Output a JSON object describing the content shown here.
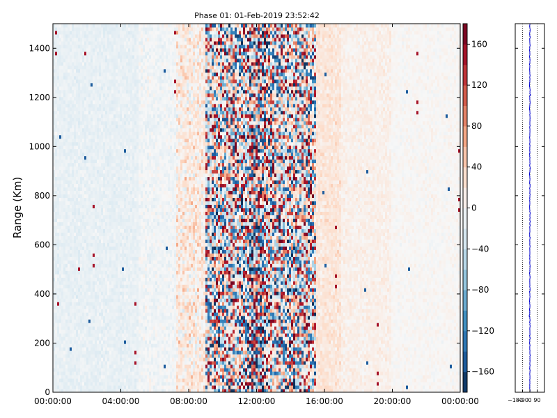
{
  "chart_data": [
    {
      "type": "heatmap",
      "title": "Phase 01: 01-Feb-2019 23:52:42",
      "ylabel": "Range (Km)",
      "xlabel": "",
      "xlim": [
        "00:00:00",
        "24:00:00"
      ],
      "ylim": [
        0,
        1500
      ],
      "x_ticks": [
        "00:00:00",
        "04:00:00",
        "08:00:00",
        "12:00:00",
        "16:00:00",
        "20:00:00",
        "00:00:00"
      ],
      "x_tick_hours": [
        0,
        4,
        8,
        12,
        16,
        20,
        24
      ],
      "y_ticks": [
        0,
        200,
        400,
        600,
        800,
        1000,
        1200,
        1400
      ],
      "colormap": "RdBu_r",
      "colorbar": {
        "range": [
          -180,
          180
        ],
        "ticks": [
          -160,
          -120,
          -80,
          -40,
          0,
          40,
          80,
          120,
          160
        ],
        "colors": [
          "#0b2a50",
          "#2166ac",
          "#4393c3",
          "#92c5de",
          "#d1e5f0",
          "#f7f7f7",
          "#fddbc7",
          "#f4a582",
          "#d6604d",
          "#b2182b",
          "#67001f"
        ]
      },
      "grid": false,
      "description_noise": "noisy phase values; strongest variability between ~08:00 and ~16:00, near zero elsewhere"
    },
    {
      "type": "line",
      "xlim": [
        -180,
        180
      ],
      "x_ticks": [
        -180,
        -90,
        0,
        90
      ],
      "x_tick_labels": [
        "−180",
        "−90",
        "0",
        "90"
      ],
      "ylim": [
        0,
        1500
      ],
      "line_color": "#0000cc",
      "mean_phase_vs_range": "near 0 at all ranges with small fluctuations",
      "vertical_dotted_lines_at": [
        -90,
        0,
        90
      ]
    }
  ]
}
